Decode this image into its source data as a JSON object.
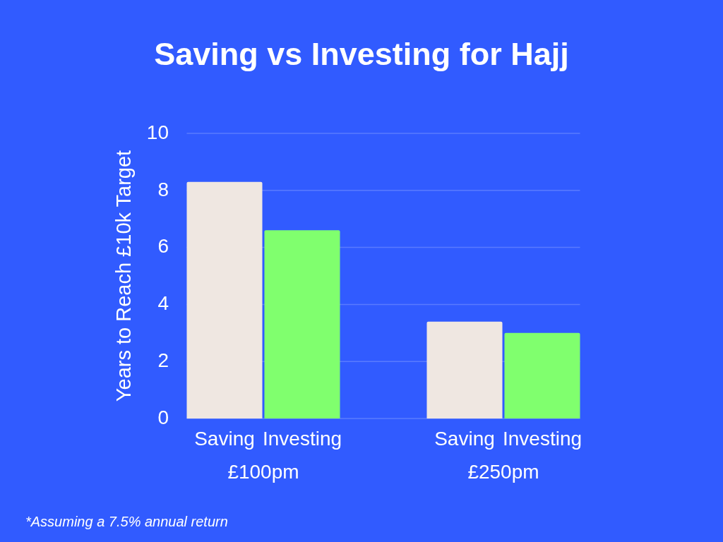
{
  "chart_data": {
    "type": "bar",
    "title": "Saving vs Investing for Hajj",
    "ylabel": "Years to Reach £10k Target",
    "categories": [
      "£100pm",
      "£250pm"
    ],
    "series": [
      {
        "name": "Saving",
        "color": "#efe7e1",
        "values": [
          8.3,
          3.4
        ]
      },
      {
        "name": "Investing",
        "color": "#80ff6e",
        "values": [
          6.6,
          3.0
        ]
      }
    ],
    "ylim": [
      0,
      10
    ],
    "yticks": [
      0,
      2,
      4,
      6,
      8,
      10
    ],
    "grid": "y",
    "annotations": [
      "*Assuming a 7.5% annual return"
    ]
  }
}
